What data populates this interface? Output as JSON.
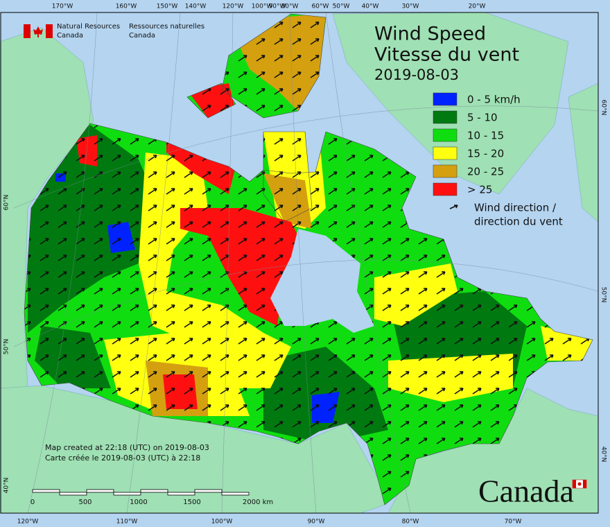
{
  "header": {
    "org_en": [
      "Natural Resources",
      "Canada"
    ],
    "org_fr": [
      "Ressources naturelles",
      "Canada"
    ],
    "title": [
      "Wind Speed",
      "Vitesse du vent"
    ],
    "date": "2019-08-03"
  },
  "legend": {
    "items": [
      {
        "label": "0 - 5 km/h",
        "color": "#0022ff"
      },
      {
        "label": "5 - 10",
        "color": "#007a10"
      },
      {
        "label": "10 - 15",
        "color": "#10dd10"
      },
      {
        "label": "15 - 20",
        "color": "#ffff10"
      },
      {
        "label": "20 - 25",
        "color": "#d4a010"
      },
      {
        "label": "> 25",
        "color": "#ff1010"
      }
    ],
    "direction": [
      "Wind direction /",
      "direction du vent"
    ]
  },
  "graticule": {
    "top": [
      "170°W",
      "160°W",
      "150°W",
      "140°W",
      "120°W",
      "100°W",
      "90°W",
      "80°W",
      "60°W",
      "50°W",
      "40°W",
      "30°W",
      "20°W"
    ],
    "bottom": [
      "120°W",
      "110°W",
      "100°W",
      "90°W",
      "80°W",
      "70°W"
    ],
    "left": [
      "60°N",
      "50°N",
      "40°N"
    ],
    "right": [
      "60°N",
      "50°N",
      "40°N"
    ]
  },
  "scale_bar": [
    "0",
    "500",
    "1000",
    "1500",
    "2000 km"
  ],
  "footnote": [
    "Map created at 22:18 (UTC) on 2019-08-03",
    "Carte créée le 2019-08-03 (UTC) à 22:18"
  ],
  "wordmark": "Canada"
}
